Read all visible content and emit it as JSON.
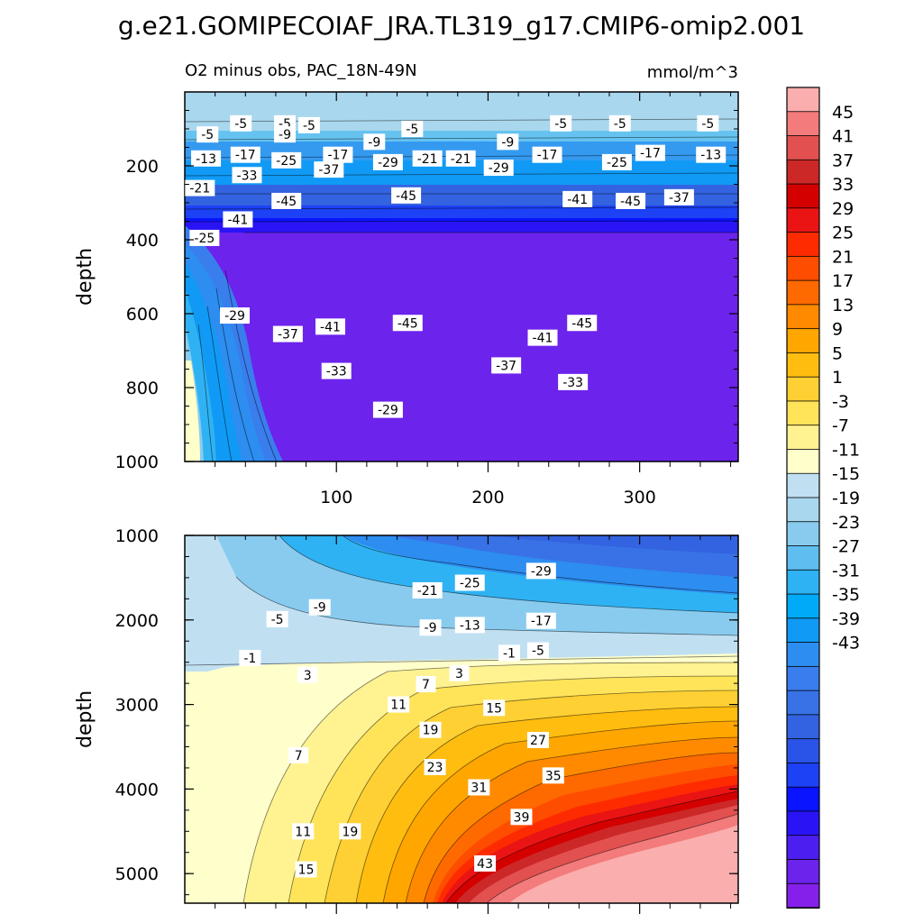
{
  "figure": {
    "title": "g.e21.GOMIPECOIAF_JRA.TL319_g17.CMIP6-omip2.001"
  },
  "chart_data": [
    {
      "type": "contour",
      "panel": "upper",
      "subtitle": "O2 minus obs, PAC_18N-49N",
      "units": "mmol/m^3",
      "xlabel": "",
      "ylabel": "depth",
      "xlim": [
        0,
        365
      ],
      "ylim": [
        1000,
        0
      ],
      "y_reversed": true,
      "x_ticks": [
        100,
        200,
        300
      ],
      "y_ticks": [
        200,
        400,
        600,
        800,
        1000
      ],
      "field_summary": "Strong negative anomaly core (<= -45) between ~250 and ~600 m across most of the section; weaker negative values near surface (-5) and below 800 m (~ -29 to -33); near-zero/positive values close to x=0 below ~700 m.",
      "contour_labels": [
        {
          "x": 37,
          "y": 85,
          "v": "-5"
        },
        {
          "x": 66,
          "y": 85,
          "v": "-5"
        },
        {
          "x": 82,
          "y": 90,
          "v": "-5"
        },
        {
          "x": 15,
          "y": 115,
          "v": "-5"
        },
        {
          "x": 66,
          "y": 115,
          "v": "-9"
        },
        {
          "x": 125,
          "y": 135,
          "v": "-9"
        },
        {
          "x": 150,
          "y": 100,
          "v": "-5"
        },
        {
          "x": 213,
          "y": 135,
          "v": "-9"
        },
        {
          "x": 248,
          "y": 85,
          "v": "-5"
        },
        {
          "x": 287,
          "y": 85,
          "v": "-5"
        },
        {
          "x": 345,
          "y": 85,
          "v": "-5"
        },
        {
          "x": 347,
          "y": 170,
          "v": "-13"
        },
        {
          "x": 14,
          "y": 180,
          "v": "-13"
        },
        {
          "x": 40,
          "y": 170,
          "v": "-17"
        },
        {
          "x": 67,
          "y": 185,
          "v": "-25"
        },
        {
          "x": 101,
          "y": 170,
          "v": "-17"
        },
        {
          "x": 134,
          "y": 190,
          "v": "-29"
        },
        {
          "x": 160,
          "y": 180,
          "v": "-21"
        },
        {
          "x": 182,
          "y": 180,
          "v": "-21"
        },
        {
          "x": 239,
          "y": 170,
          "v": "-17"
        },
        {
          "x": 285,
          "y": 190,
          "v": "-25"
        },
        {
          "x": 307,
          "y": 165,
          "v": "-17"
        },
        {
          "x": 207,
          "y": 205,
          "v": "-29"
        },
        {
          "x": 41,
          "y": 225,
          "v": "-33"
        },
        {
          "x": 95,
          "y": 210,
          "v": "-37"
        },
        {
          "x": 326,
          "y": 285,
          "v": "-37"
        },
        {
          "x": 10,
          "y": 260,
          "v": "-21"
        },
        {
          "x": 67,
          "y": 295,
          "v": "-45"
        },
        {
          "x": 146,
          "y": 280,
          "v": "-45"
        },
        {
          "x": 259,
          "y": 290,
          "v": "-41"
        },
        {
          "x": 294,
          "y": 295,
          "v": "-45"
        },
        {
          "x": 35,
          "y": 345,
          "v": "-41"
        },
        {
          "x": 13,
          "y": 395,
          "v": "-25"
        },
        {
          "x": 33,
          "y": 605,
          "v": "-29"
        },
        {
          "x": 68,
          "y": 655,
          "v": "-37"
        },
        {
          "x": 96,
          "y": 635,
          "v": "-41"
        },
        {
          "x": 147,
          "y": 625,
          "v": "-45"
        },
        {
          "x": 262,
          "y": 625,
          "v": "-45"
        },
        {
          "x": 236,
          "y": 665,
          "v": "-41"
        },
        {
          "x": 212,
          "y": 740,
          "v": "-37"
        },
        {
          "x": 100,
          "y": 755,
          "v": "-33"
        },
        {
          "x": 256,
          "y": 785,
          "v": "-33"
        },
        {
          "x": 134,
          "y": 860,
          "v": "-29"
        }
      ]
    },
    {
      "type": "contour",
      "panel": "lower",
      "xlabel": "",
      "ylabel": "depth",
      "xlim": [
        0,
        365
      ],
      "ylim": [
        5350,
        1000
      ],
      "y_reversed": true,
      "x_ticks": [
        100,
        200,
        300
      ],
      "y_ticks": [
        1000,
        2000,
        3000,
        4000,
        5000
      ],
      "field_summary": "Negative anomalies (-1 to -29) above ~2500 m deepening toward the east; positive anomalies below ~2500 m increasing with depth and toward the east, exceeding 45 in the deep eastern corner.",
      "contour_labels": [
        {
          "x": 61,
          "y": 1990,
          "v": "-5"
        },
        {
          "x": 89,
          "y": 1850,
          "v": "-9"
        },
        {
          "x": 160,
          "y": 1650,
          "v": "-21"
        },
        {
          "x": 188,
          "y": 1560,
          "v": "-25"
        },
        {
          "x": 235,
          "y": 1420,
          "v": "-29"
        },
        {
          "x": 162,
          "y": 2090,
          "v": "-9"
        },
        {
          "x": 188,
          "y": 2060,
          "v": "-13"
        },
        {
          "x": 235,
          "y": 2010,
          "v": "-17"
        },
        {
          "x": 214,
          "y": 2390,
          "v": "-1"
        },
        {
          "x": 233,
          "y": 2360,
          "v": "-5"
        },
        {
          "x": 43,
          "y": 2450,
          "v": "-1"
        },
        {
          "x": 81,
          "y": 2650,
          "v": "3"
        },
        {
          "x": 181,
          "y": 2630,
          "v": "3"
        },
        {
          "x": 159,
          "y": 2760,
          "v": "7"
        },
        {
          "x": 141,
          "y": 3000,
          "v": "11"
        },
        {
          "x": 204,
          "y": 3040,
          "v": "15"
        },
        {
          "x": 162,
          "y": 3300,
          "v": "19"
        },
        {
          "x": 233,
          "y": 3420,
          "v": "27"
        },
        {
          "x": 75,
          "y": 3600,
          "v": "7"
        },
        {
          "x": 165,
          "y": 3740,
          "v": "23"
        },
        {
          "x": 243,
          "y": 3840,
          "v": "35"
        },
        {
          "x": 194,
          "y": 3980,
          "v": "31"
        },
        {
          "x": 222,
          "y": 4330,
          "v": "39"
        },
        {
          "x": 78,
          "y": 4500,
          "v": "11"
        },
        {
          "x": 109,
          "y": 4500,
          "v": "19"
        },
        {
          "x": 198,
          "y": 4880,
          "v": "43"
        },
        {
          "x": 80,
          "y": 4950,
          "v": "15"
        }
      ]
    },
    {
      "type": "colorbar",
      "labels": [
        "45",
        "41",
        "37",
        "33",
        "29",
        "25",
        "21",
        "17",
        "13",
        "9",
        "5",
        "1",
        "-3",
        "-7",
        "-11",
        "-15",
        "-19",
        "-23",
        "-27",
        "-31",
        "-35",
        "-39",
        "-43"
      ],
      "colors": [
        "#fbaeae",
        "#f37b7b",
        "#e35050",
        "#cc2828",
        "#d40000",
        "#ea1414",
        "#ff2b00",
        "#ff4d00",
        "#ff6a00",
        "#ff8a00",
        "#ffa600",
        "#ffbd10",
        "#ffd033",
        "#ffe45a",
        "#fff291",
        "#ffffcc",
        "#c0e0f2",
        "#a9d7ee",
        "#89cbef",
        "#60bdf0",
        "#2fb2f3",
        "#00aaf7",
        "#109af5",
        "#2d8df0",
        "#3a7ded",
        "#3872e6",
        "#3363e0",
        "#2a54e8",
        "#1d41f5",
        "#0a14ff",
        "#2a14f6",
        "#4c1ef0",
        "#6c23ec",
        "#8420ea"
      ]
    }
  ]
}
